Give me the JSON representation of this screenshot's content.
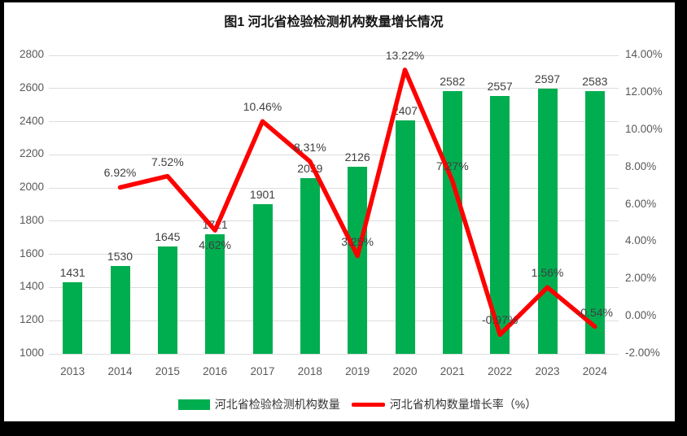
{
  "window": {
    "frame_color": "#000000",
    "canvas_color": "#FFFFFF"
  },
  "chart_data": {
    "type": "combo",
    "title": "图1  河北省检验检测机构数量增长情况",
    "categories": [
      "2013",
      "2014",
      "2015",
      "2016",
      "2017",
      "2018",
      "2019",
      "2020",
      "2021",
      "2022",
      "2023",
      "2024"
    ],
    "series": [
      {
        "name": "河北省检验检测机构数量",
        "chart_type": "bar",
        "axis": "left",
        "color": "#00AE50",
        "values": [
          1431,
          1530,
          1645,
          1721,
          1901,
          2059,
          2126,
          2407,
          2582,
          2557,
          2597,
          2583
        ],
        "labels": [
          "1431",
          "1530",
          "1645",
          "1721",
          "1901",
          "2059",
          "2126",
          "2407",
          "2582",
          "2557",
          "2597",
          "2583"
        ]
      },
      {
        "name": "河北省机构数量增长率（%）",
        "chart_type": "line",
        "axis": "right",
        "color": "#FF0000",
        "values": [
          null,
          6.92,
          7.52,
          4.62,
          10.46,
          8.31,
          3.25,
          13.22,
          7.27,
          -0.97,
          1.56,
          -0.54
        ],
        "labels": [
          "",
          "6.92%",
          "7.52%",
          "4.62%",
          "10.46%",
          "8.31%",
          "3.25%",
          "13.22%",
          "7.27%",
          "-0.97%",
          "1.56%",
          "-0.54%"
        ],
        "label_placement": [
          "",
          "above",
          "above",
          "below",
          "above",
          "above",
          "above",
          "above",
          "above",
          "above",
          "above",
          "above"
        ]
      }
    ],
    "left_axis": {
      "min": 1000,
      "max": 2800,
      "step": 200,
      "tick_values": [
        2800,
        2600,
        2400,
        2200,
        2000,
        1800,
        1600,
        1400,
        1200,
        1000
      ],
      "tick_labels": [
        "2800",
        "2600",
        "2400",
        "2200",
        "2000",
        "1800",
        "1600",
        "1400",
        "1200",
        "1000"
      ]
    },
    "right_axis": {
      "min": -2,
      "max": 14,
      "step": 2,
      "tick_values": [
        14,
        12,
        10,
        8,
        6,
        4,
        2,
        0,
        -2
      ],
      "tick_labels": [
        "14.00%",
        "12.00%",
        "10.00%",
        "8.00%",
        "6.00%",
        "4.00%",
        "2.00%",
        "0.00%",
        "-2.00%"
      ]
    },
    "grid": true,
    "legend_position": "bottom",
    "colors": {
      "bar": "#00AE50",
      "line": "#FF0000",
      "grid": "#DDDDDD",
      "axis_text": "#595959",
      "data_label_text": "#404040",
      "title_text": "#141414"
    }
  }
}
